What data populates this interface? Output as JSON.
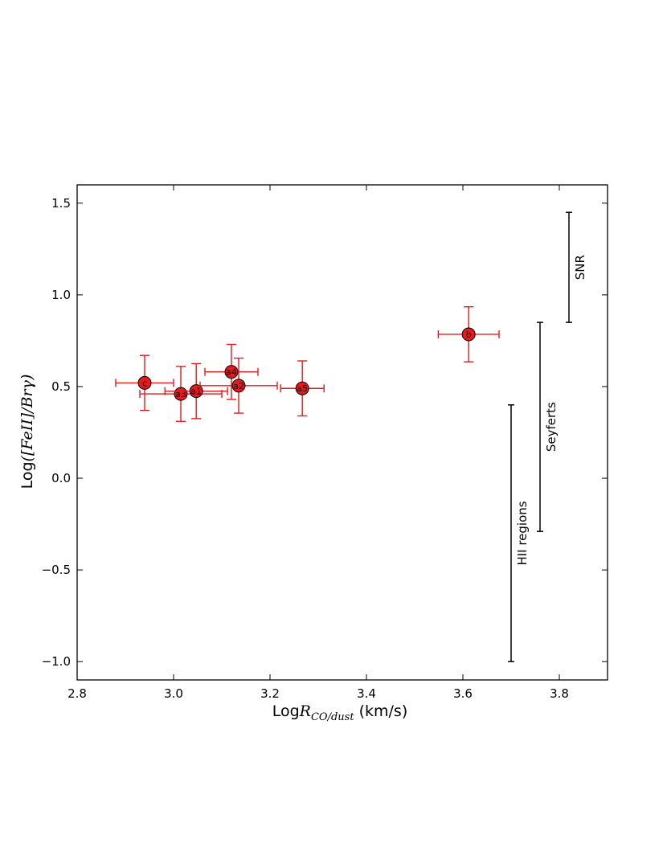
{
  "chart_data": {
    "type": "scatter",
    "x_axis": {
      "label_prefix": "Log",
      "label_symbol": "R",
      "label_subscript": "CO/dust",
      "label_suffix": " (km/s)",
      "range": [
        2.8,
        3.9
      ],
      "ticks": [
        2.8,
        3.0,
        3.2,
        3.4,
        3.6,
        3.8
      ],
      "tick_labels": [
        "2.8",
        "3.0",
        "3.2",
        "3.4",
        "3.6",
        "3.8"
      ]
    },
    "y_axis": {
      "label_prefix": "Log",
      "label_formula": "([FeII]/Brγ)",
      "range": [
        -1.1,
        1.6
      ],
      "ticks": [
        -1.0,
        -0.5,
        0.0,
        0.5,
        1.0,
        1.5
      ],
      "tick_labels": [
        "−1.0",
        "−0.5",
        "0.0",
        "0.5",
        "1.0",
        "1.5"
      ]
    },
    "grid": false,
    "marker_color": "#e41a1c",
    "errorbar_color": "#e41a1c",
    "points": [
      {
        "label": "c",
        "x": 2.94,
        "y": 0.52,
        "xerr": 0.06,
        "yerr": 0.15
      },
      {
        "label": "a3",
        "x": 3.015,
        "y": 0.46,
        "xerr": 0.085,
        "yerr": 0.15
      },
      {
        "label": "a1",
        "x": 3.047,
        "y": 0.475,
        "xerr": 0.065,
        "yerr": 0.15
      },
      {
        "label": "a4",
        "x": 3.12,
        "y": 0.58,
        "xerr": 0.055,
        "yerr": 0.15
      },
      {
        "label": "a2",
        "x": 3.135,
        "y": 0.505,
        "xerr": 0.08,
        "yerr": 0.15
      },
      {
        "label": "a5",
        "x": 3.267,
        "y": 0.49,
        "xerr": 0.045,
        "yerr": 0.15
      },
      {
        "label": "b",
        "x": 3.612,
        "y": 0.785,
        "xerr": 0.063,
        "yerr": 0.15
      }
    ],
    "ranges": [
      {
        "label": "HII regions",
        "x": 3.7,
        "ymin": -1.0,
        "ymax": 0.4,
        "color": "#000000"
      },
      {
        "label": "Seyferts",
        "x": 3.76,
        "ymin": -0.29,
        "ymax": 0.85,
        "color": "#000000"
      },
      {
        "label": "SNR",
        "x": 3.82,
        "ymin": 0.85,
        "ymax": 1.45,
        "color": "#000000"
      }
    ]
  }
}
